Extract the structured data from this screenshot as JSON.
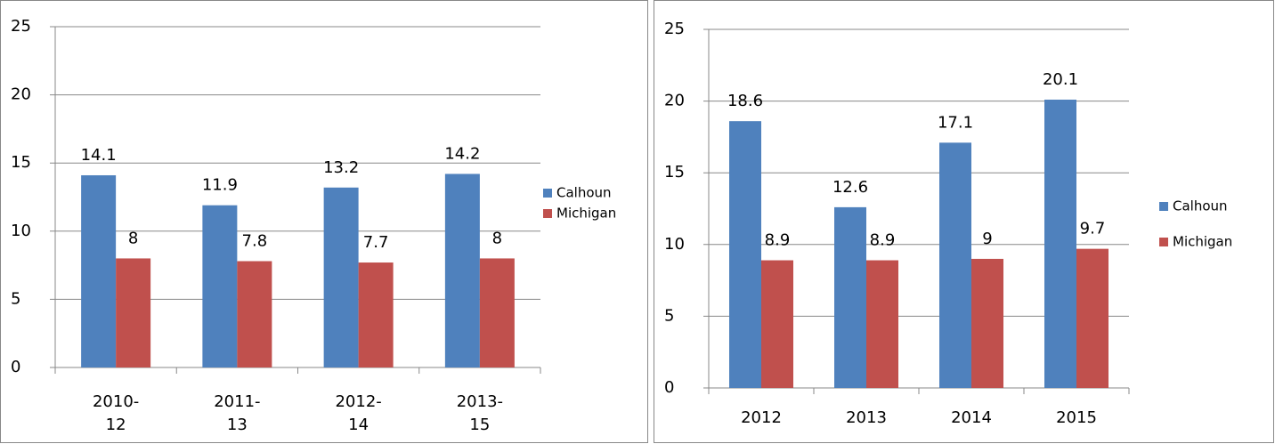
{
  "chart_data": [
    {
      "type": "bar",
      "categories": [
        "2010-12",
        "2011-13",
        "2012-14",
        "2013-15"
      ],
      "series": [
        {
          "name": "Calhoun",
          "color": "#4f81bd",
          "values": [
            14.1,
            11.9,
            13.2,
            14.2
          ]
        },
        {
          "name": "Michigan",
          "color": "#c0504d",
          "values": [
            8,
            7.8,
            7.7,
            8
          ]
        }
      ],
      "ylim": [
        0,
        25
      ],
      "yticks": [
        0,
        5,
        10,
        15,
        20,
        25
      ],
      "grid": true,
      "legend": "right"
    },
    {
      "type": "bar",
      "categories": [
        "2012",
        "2013",
        "2014",
        "2015"
      ],
      "series": [
        {
          "name": "Calhoun",
          "color": "#4f81bd",
          "values": [
            18.6,
            12.6,
            17.1,
            20.1
          ]
        },
        {
          "name": "Michigan",
          "color": "#c0504d",
          "values": [
            8.9,
            8.9,
            9,
            9.7
          ]
        }
      ],
      "ylim": [
        0,
        25
      ],
      "yticks": [
        0,
        5,
        10,
        15,
        20,
        25
      ],
      "grid": true,
      "legend": "right"
    }
  ]
}
